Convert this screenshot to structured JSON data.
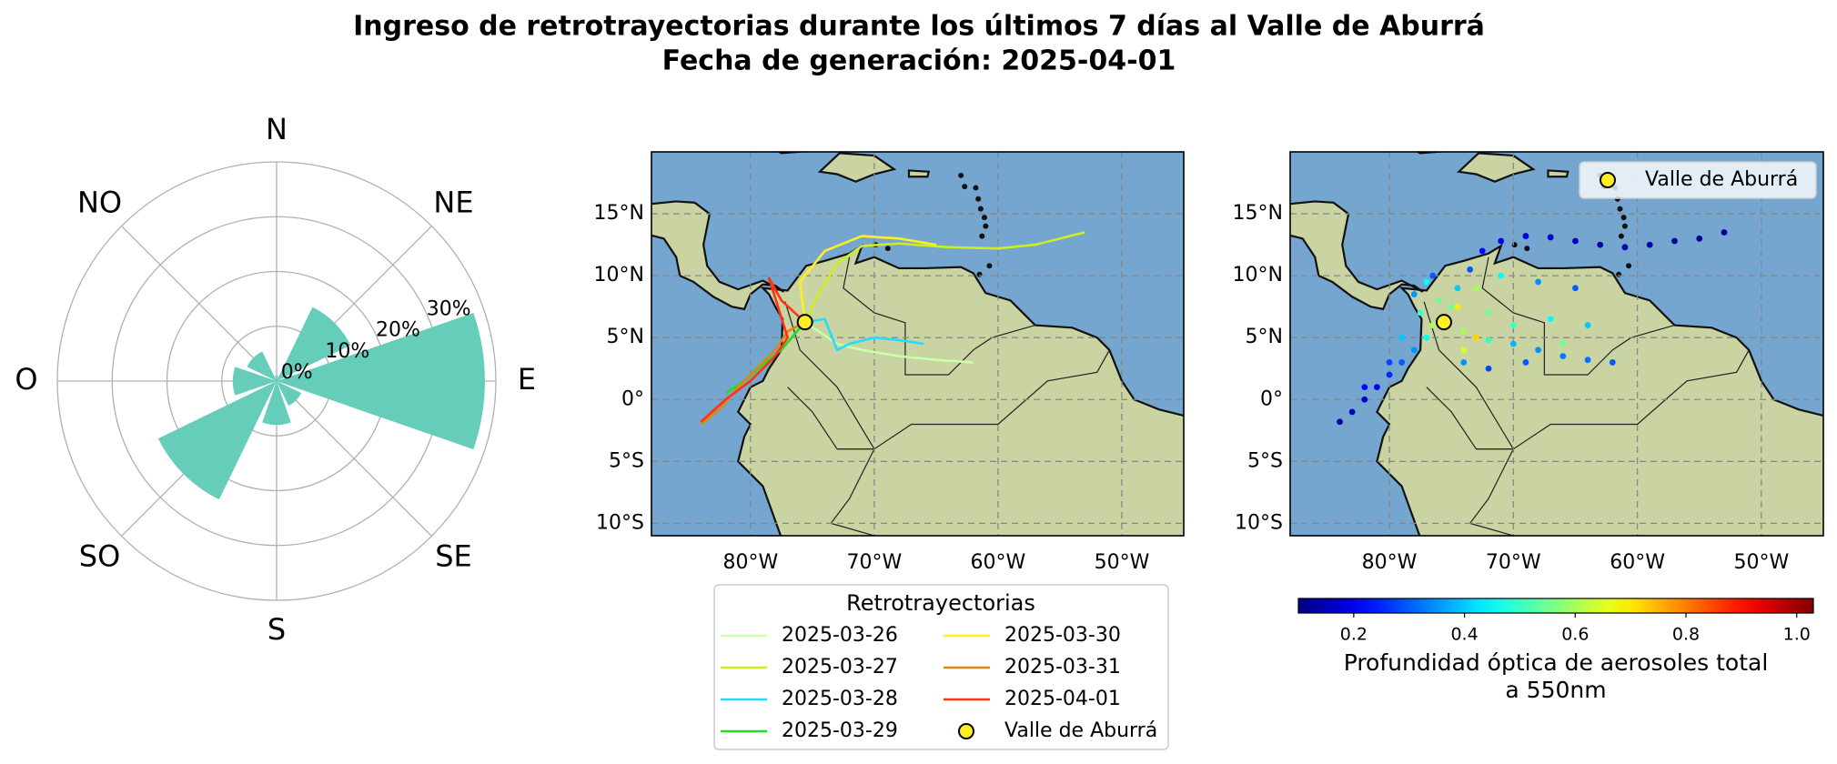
{
  "title": "Ingreso de retrotrayectorias durante los últimos 7 días al Valle de Aburrá",
  "subtitle": "Fecha de generación: 2025-04-01",
  "chart_data": [
    {
      "type": "polar-bar",
      "categories": [
        "N",
        "NE",
        "E",
        "SE",
        "S",
        "SO",
        "O",
        "NO"
      ],
      "theta": [
        0,
        45,
        90,
        135,
        180,
        225,
        270,
        315
      ],
      "values": [
        1,
        15,
        38,
        5,
        8,
        24,
        8,
        6
      ],
      "color": "#66cdbb",
      "rlim": [
        0,
        40
      ],
      "rticks": [
        {
          "value": 0,
          "label": "0%"
        },
        {
          "value": 10,
          "label": "10%"
        },
        {
          "value": 20,
          "label": "20%"
        },
        {
          "value": 30,
          "label": "30%"
        }
      ],
      "grid": true
    },
    {
      "type": "line",
      "xlim": [
        -88,
        -45
      ],
      "ylim": [
        -11,
        20
      ],
      "xticks": [
        {
          "value": -80,
          "label": "80°W"
        },
        {
          "value": -70,
          "label": "70°W"
        },
        {
          "value": -60,
          "label": "60°W"
        },
        {
          "value": -50,
          "label": "50°W"
        }
      ],
      "yticks": [
        {
          "value": 15,
          "label": "15°N"
        },
        {
          "value": 10,
          "label": "10°N"
        },
        {
          "value": 5,
          "label": "5°N"
        },
        {
          "value": 0,
          "label": "0°"
        },
        {
          "value": -5,
          "label": "5°S"
        },
        {
          "value": -10,
          "label": "10°S"
        }
      ],
      "grid": true,
      "legend": {
        "title": "Retrotrayectorias",
        "position": "lower center"
      },
      "series": [
        {
          "name": "2025-03-26",
          "color": "#ccffaa",
          "x": [
            -62,
            -65,
            -68,
            -71,
            -73,
            -75.6
          ],
          "y": [
            3,
            3.2,
            3.5,
            4,
            4.5,
            6.25
          ]
        },
        {
          "name": "2025-03-27",
          "color": "#ccee22",
          "x": [
            -53,
            -57,
            -60,
            -64,
            -68,
            -71,
            -73,
            -74.5,
            -75.6
          ],
          "y": [
            13.5,
            12.5,
            12.2,
            12.3,
            12.6,
            12.4,
            11,
            8.5,
            6.25
          ]
        },
        {
          "name": "2025-03-28",
          "color": "#22ddff",
          "x": [
            -66,
            -68,
            -70,
            -72,
            -73,
            -74,
            -75.6
          ],
          "y": [
            4.5,
            4.8,
            5,
            4.5,
            4,
            6.5,
            6.25
          ]
        },
        {
          "name": "2025-03-29",
          "color": "#22dd22",
          "x": [
            -82,
            -80.5,
            -79,
            -77.5,
            -76.5,
            -75.6
          ],
          "y": [
            0.5,
            1.5,
            2.8,
            4,
            5.2,
            6.25
          ]
        },
        {
          "name": "2025-03-30",
          "color": "#ffee22",
          "x": [
            -65,
            -68,
            -71,
            -74,
            -76,
            -75.6
          ],
          "y": [
            12.5,
            13,
            13.2,
            12,
            9.5,
            6.25
          ]
        },
        {
          "name": "2025-03-31",
          "color": "#dd8811",
          "x": [
            -84,
            -82.5,
            -81,
            -79.5,
            -78,
            -77,
            -75.6
          ],
          "y": [
            -2,
            -0.8,
            1,
            2.5,
            4,
            5.5,
            6.25
          ]
        },
        {
          "name": "2025-04-01",
          "color": "#ff3311",
          "x": [
            -84,
            -82,
            -80,
            -78,
            -77,
            -78.5,
            -77.5,
            -75.6
          ],
          "y": [
            -1.8,
            0,
            1.5,
            3.5,
            5,
            9.8,
            8,
            6.25
          ]
        }
      ],
      "point": {
        "name": "Valle de Aburrá",
        "x": -75.6,
        "y": 6.25,
        "color": "#ffee22"
      }
    },
    {
      "type": "scatter",
      "xlim": [
        -88,
        -45
      ],
      "ylim": [
        -11,
        20
      ],
      "xticks": [
        {
          "value": -80,
          "label": "80°W"
        },
        {
          "value": -70,
          "label": "70°W"
        },
        {
          "value": -60,
          "label": "60°W"
        },
        {
          "value": -50,
          "label": "50°W"
        }
      ],
      "yticks": [
        {
          "value": 15,
          "label": "15°N"
        },
        {
          "value": 10,
          "label": "10°N"
        },
        {
          "value": 5,
          "label": "5°N"
        },
        {
          "value": 0,
          "label": "0°"
        },
        {
          "value": -5,
          "label": "5°S"
        },
        {
          "value": -10,
          "label": "10°S"
        }
      ],
      "grid": true,
      "x": [
        -53,
        -55,
        -57,
        -59,
        -61,
        -63,
        -65,
        -67,
        -69,
        -71,
        -72.5,
        -73.5,
        -74.5,
        -75,
        -65,
        -68,
        -71,
        -73,
        -74.5,
        -62,
        -64,
        -66,
        -68,
        -70,
        -72,
        -74,
        -64,
        -67,
        -70,
        -72,
        -66,
        -69,
        -72,
        -74,
        -73,
        -74,
        -84,
        -83,
        -82,
        -81,
        -80,
        -79,
        -78,
        -77,
        -76.5,
        -82,
        -80,
        -79,
        -78,
        -77,
        -76,
        -76.5,
        -77.5
      ],
      "y": [
        13.5,
        13,
        12.8,
        12.5,
        12.3,
        12.5,
        12.8,
        13.1,
        13.2,
        12.8,
        12,
        10.5,
        9,
        7.5,
        9,
        9.5,
        10,
        9,
        7.5,
        3,
        3.2,
        3.5,
        4,
        4.5,
        4.8,
        5.5,
        6,
        6.5,
        6,
        7,
        4.5,
        3,
        2.5,
        3,
        5,
        4,
        -1.8,
        -1,
        0,
        1,
        2,
        3,
        4,
        5,
        6,
        1,
        3,
        5,
        8.5,
        9.5,
        8,
        10,
        7
      ],
      "values": [
        0.12,
        0.12,
        0.13,
        0.14,
        0.15,
        0.15,
        0.16,
        0.17,
        0.18,
        0.2,
        0.22,
        0.3,
        0.4,
        0.55,
        0.3,
        0.35,
        0.45,
        0.6,
        0.7,
        0.3,
        0.32,
        0.33,
        0.35,
        0.38,
        0.5,
        0.6,
        0.4,
        0.45,
        0.5,
        0.55,
        0.55,
        0.3,
        0.28,
        0.35,
        0.72,
        0.65,
        0.13,
        0.15,
        0.16,
        0.2,
        0.25,
        0.3,
        0.35,
        0.45,
        0.6,
        0.22,
        0.28,
        0.4,
        0.35,
        0.45,
        0.55,
        0.3,
        0.5
      ],
      "colormap": "jet",
      "clim": [
        0.1,
        1.03
      ],
      "cticks": [
        0.2,
        0.4,
        0.6,
        0.8,
        {
          "value": 1.0,
          "label": "1.0"
        }
      ],
      "colorbar_label": [
        "Profundidad óptica de aerosoles total",
        "a 550nm"
      ],
      "legend": "upper right",
      "point": {
        "name": "Valle de Aburrá",
        "x": -75.6,
        "y": 6.25,
        "color": "#ffee22"
      }
    }
  ]
}
